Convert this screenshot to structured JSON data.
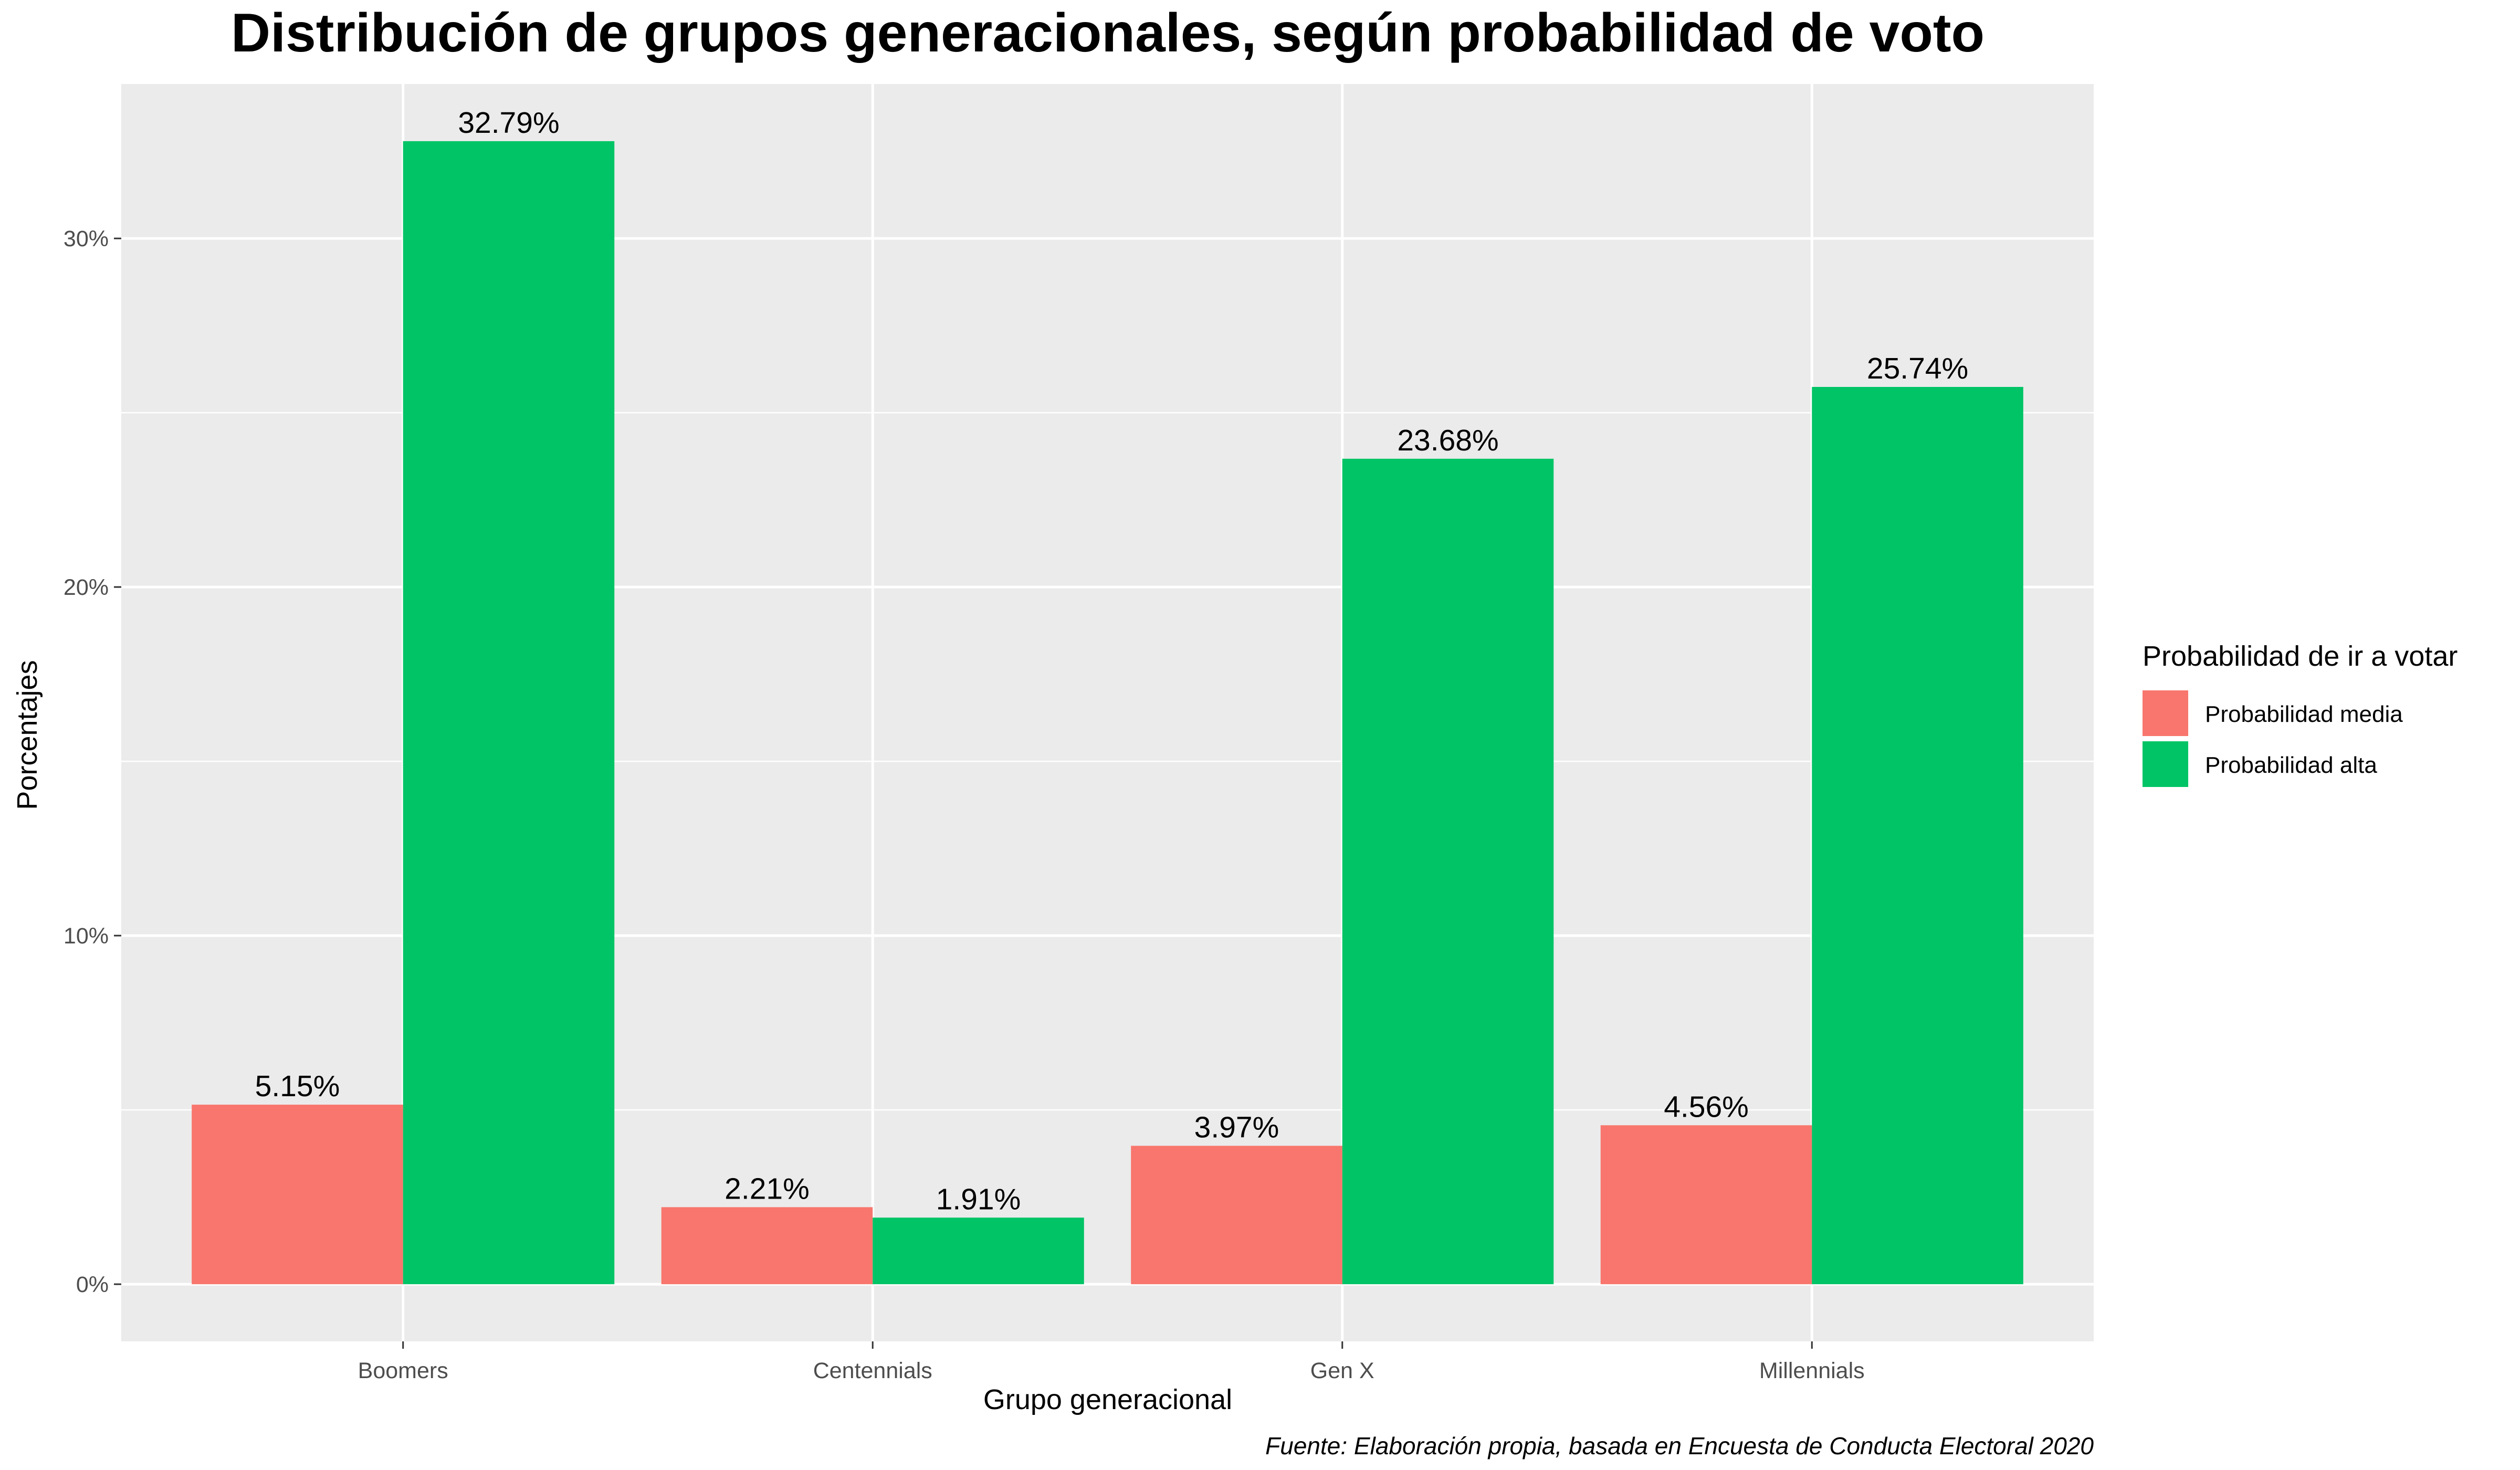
{
  "chart_data": {
    "type": "bar",
    "title": "Distribución de grupos generacionales, según probabilidad de voto",
    "xlabel": "Grupo generacional",
    "ylabel": "Porcentajes",
    "caption": "Fuente: Elaboración propia, basada en Encuesta de Conducta Electoral 2020",
    "categories": [
      "Boomers",
      "Centennials",
      "Gen X",
      "Millennials"
    ],
    "series": [
      {
        "name": "Probabilidad media",
        "color": "#F8766D",
        "values": [
          5.15,
          2.21,
          3.97,
          4.56
        ],
        "labels": [
          "5.15%",
          "2.21%",
          "3.97%",
          "4.56%"
        ]
      },
      {
        "name": "Probabilidad alta",
        "color": "#00C466",
        "values": [
          32.79,
          1.91,
          23.68,
          25.74
        ],
        "labels": [
          "32.79%",
          "1.91%",
          "23.68%",
          "25.74%"
        ]
      }
    ],
    "legend_title": "Probabilidad de ir a votar",
    "legend_position": "right",
    "ylim": [
      -1.64,
      34.43
    ],
    "y_ticks": [
      0,
      10,
      20,
      30
    ],
    "y_tick_labels": [
      "0%",
      "10%",
      "20%",
      "30%"
    ],
    "grid": true,
    "panel_background": "#EBEBEB",
    "grid_color": "#FFFFFF"
  }
}
